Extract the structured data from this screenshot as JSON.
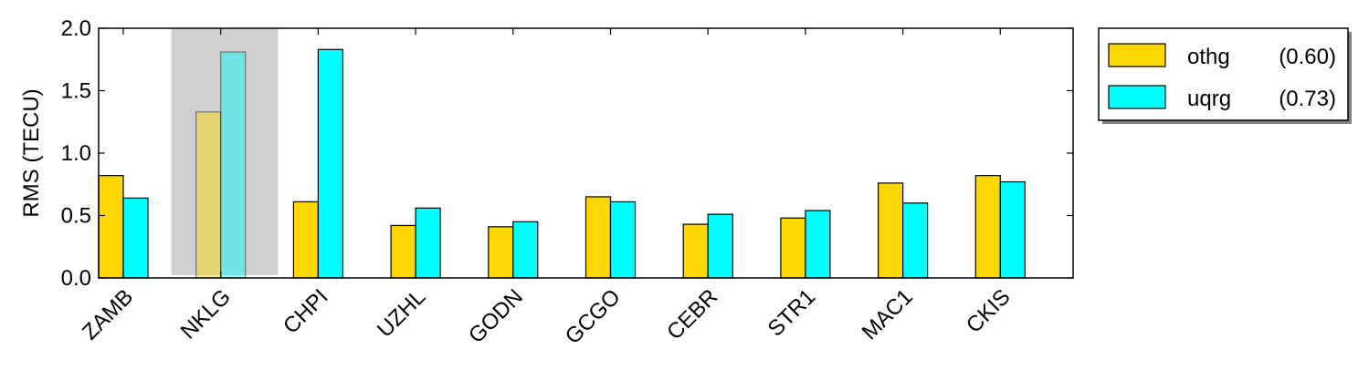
{
  "chart_data": {
    "type": "bar",
    "categories": [
      "ZAMB",
      "NKLG",
      "CHPI",
      "UZHL",
      "GODN",
      "GCGO",
      "CEBR",
      "STR1",
      "MAC1",
      "CKIS"
    ],
    "series": [
      {
        "name": "othg",
        "legend_value": "(0.60)",
        "color": "#FFD700",
        "values": [
          0.82,
          1.33,
          0.61,
          0.42,
          0.41,
          0.65,
          0.43,
          0.48,
          0.76,
          0.82
        ]
      },
      {
        "name": "uqrg",
        "legend_value": "(0.73)",
        "color": "#00FFFF",
        "values": [
          0.64,
          1.81,
          1.83,
          0.56,
          0.45,
          0.61,
          0.51,
          0.54,
          0.6,
          0.77
        ]
      }
    ],
    "highlighted_category": "NKLG",
    "highlight_color": "#C0C0C0",
    "title": "",
    "xlabel": "",
    "ylabel": "RMS  (TECU)",
    "ylim": [
      0.0,
      2.0
    ],
    "yticks": [
      "0.0",
      "0.5",
      "1.0",
      "1.5",
      "2.0"
    ],
    "grid": false,
    "legend_position": "outside-top-right"
  }
}
